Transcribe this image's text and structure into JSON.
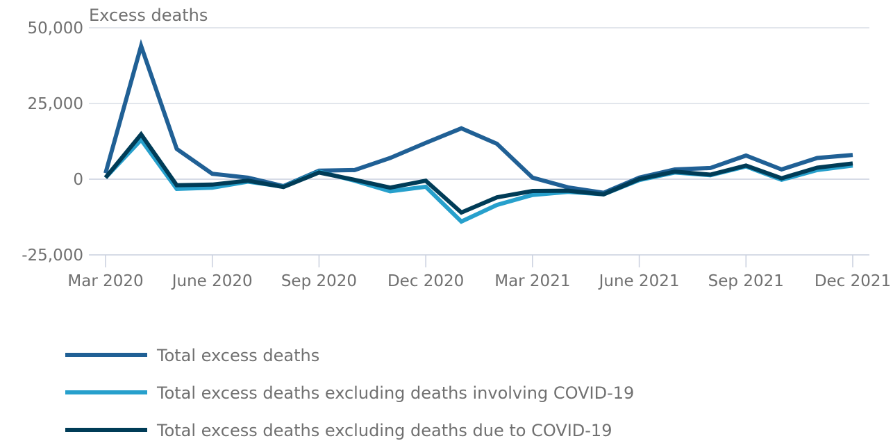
{
  "chart_data": {
    "type": "line",
    "ylabel": "Excess deaths",
    "ylim": [
      -25000,
      50000
    ],
    "yticks": [
      50000,
      25000,
      0,
      -25000
    ],
    "ytick_labels": [
      "50,000",
      "25,000",
      "0",
      "-25,000"
    ],
    "x": [
      "Mar 2020",
      "Apr 2020",
      "May 2020",
      "June 2020",
      "Jul 2020",
      "Aug 2020",
      "Sep 2020",
      "Oct 2020",
      "Nov 2020",
      "Dec 2020",
      "Jan 2021",
      "Feb 2021",
      "Mar 2021",
      "Apr 2021",
      "May 2021",
      "June 2021",
      "Jul 2021",
      "Aug 2021",
      "Sep 2021",
      "Oct 2021",
      "Nov 2021",
      "Dec 2021"
    ],
    "xtick_labels": [
      "Mar 2020",
      "June 2020",
      "Sep 2020",
      "Dec 2020",
      "Mar 2021",
      "June 2021",
      "Sep 2021",
      "Dec 2021"
    ],
    "grid": true,
    "legend_position": "bottom",
    "series": [
      {
        "name": "Total excess deaths",
        "color": "#206095",
        "values": [
          2000,
          44000,
          10000,
          1800,
          500,
          -2300,
          2800,
          3000,
          7000,
          12000,
          16800,
          11700,
          500,
          -2700,
          -4500,
          500,
          3200,
          3700,
          7800,
          3200,
          7000,
          8000
        ]
      },
      {
        "name": "Total excess deaths excluding deaths involving COVID-19",
        "color": "#27a0cc",
        "values": [
          500,
          13000,
          -3200,
          -2800,
          -800,
          -2500,
          2500,
          -500,
          -4000,
          -2500,
          -14000,
          -8500,
          -5200,
          -4200,
          -5000,
          -300,
          2200,
          1300,
          4200,
          -200,
          3000,
          4500
        ]
      },
      {
        "name": "Total excess deaths excluding deaths due to COVID-19",
        "color": "#003c57",
        "values": [
          500,
          14800,
          -2000,
          -1800,
          -500,
          -2600,
          2200,
          -200,
          -2800,
          -500,
          -11000,
          -6000,
          -3900,
          -3800,
          -5000,
          0,
          2500,
          1500,
          4500,
          300,
          3800,
          5200
        ]
      }
    ]
  }
}
